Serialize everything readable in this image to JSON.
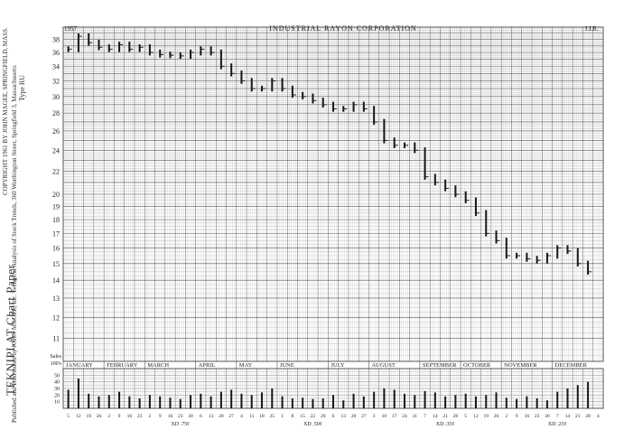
{
  "sidebar": {
    "copyright": "COPYRIGHT 1961 BY JOHN MAGEE, SPRINGFIELD, MASS.",
    "publisher": "Published and Distributed by JOHN MAGEE, Inc. Technical Analysis of Stock Trends, 360 Worthington Street, Springfield 3, Massachusetts",
    "brand": "TEKNIPLAT  Chart  Paper",
    "type_label": "Type RU"
  },
  "colors": {
    "paper": "#ffffff",
    "grid": "#9a9a9a",
    "grid_major": "#555555",
    "ink": "#1a1a1a"
  },
  "chart_data": {
    "type": "bar",
    "title": "INDUSTRIAL  RAYON  CORPORATION",
    "year_label": "1957",
    "corner_label": "I.I.R.",
    "y_scale": "log",
    "ylim": [
      10,
      40
    ],
    "y_ticks": [
      11,
      12,
      13,
      14,
      15,
      16,
      17,
      18,
      19,
      20,
      22,
      24,
      26,
      28,
      30,
      32,
      34,
      36,
      38
    ],
    "volume_label": "Sales\n100's",
    "volume_ylim": [
      0,
      60
    ],
    "volume_ticks": [
      10,
      20,
      30,
      40,
      50
    ],
    "months": [
      "JANUARY",
      "FEBRUARY",
      "MARCH",
      "APRIL",
      "MAY",
      "JUNE",
      "JULY",
      "AUGUST",
      "SEPTEMBER",
      "OCTOBER",
      "NOVEMBER",
      "DECEMBER"
    ],
    "week_labels": [
      "5",
      "12",
      "19",
      "26",
      "2",
      "9",
      "16",
      "23",
      "2",
      "9",
      "16",
      "23",
      "30",
      "6",
      "13",
      "20",
      "27",
      "4",
      "11",
      "18",
      "25",
      "1",
      "8",
      "15",
      "22",
      "29",
      "6",
      "13",
      "20",
      "27",
      "3",
      "10",
      "17",
      "24",
      "31",
      "7",
      "14",
      "21",
      "28",
      "5",
      "12",
      "19",
      "26",
      "2",
      "9",
      "16",
      "23",
      "30",
      "7",
      "14",
      "21",
      "28",
      "4"
    ],
    "dividend_notes": [
      {
        "label": "XD .75¢",
        "week": 11
      },
      {
        "label": "XD .50¢",
        "week": 24
      },
      {
        "label": "XD .35¢",
        "week": 37
      },
      {
        "label": "XD .25¢",
        "week": 48
      }
    ],
    "series": [
      {
        "name": "Price",
        "weeks": [
          0,
          1,
          2,
          3,
          4,
          5,
          6,
          7,
          8,
          9,
          10,
          11,
          12,
          13,
          14,
          15,
          16,
          17,
          18,
          19,
          20,
          21,
          22,
          23,
          24,
          25,
          26,
          27,
          28,
          29,
          30,
          31,
          32,
          33,
          34,
          35,
          36,
          37,
          38,
          39,
          40,
          41,
          42,
          43,
          44,
          45,
          46,
          47,
          48,
          49,
          50,
          51
        ],
        "close": [
          36.5,
          38.5,
          37.5,
          36.8,
          36.5,
          37.2,
          36.5,
          36.8,
          36,
          35.7,
          35.6,
          35.5,
          36,
          36.5,
          36,
          34,
          33,
          32,
          31,
          31,
          32,
          31,
          30.2,
          30,
          29.5,
          29,
          28.5,
          28.5,
          29,
          28.5,
          27,
          25,
          24.5,
          24.5,
          24,
          21.5,
          21,
          20.5,
          20,
          19.5,
          18.5,
          17,
          16.5,
          15.5,
          15.5,
          15.3,
          15.2,
          15.5,
          16,
          15.8,
          15,
          14.5
        ],
        "volume": [
          28,
          45,
          22,
          18,
          20,
          25,
          18,
          15,
          20,
          18,
          16,
          14,
          20,
          22,
          18,
          25,
          28,
          22,
          20,
          24,
          30,
          18,
          15,
          16,
          14,
          15,
          20,
          12,
          22,
          18,
          25,
          30,
          28,
          22,
          20,
          26,
          24,
          18,
          20,
          22,
          18,
          20,
          24,
          16,
          14,
          18,
          15,
          12,
          25,
          30,
          35,
          40
        ]
      }
    ]
  }
}
